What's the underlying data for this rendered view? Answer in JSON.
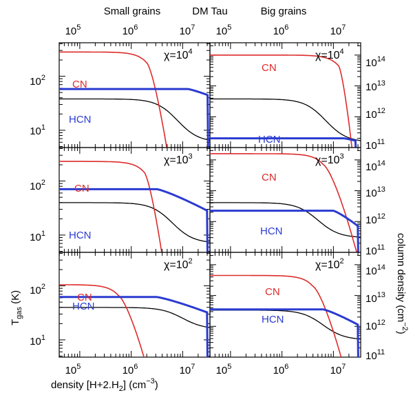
{
  "chart_data": {
    "type": "line",
    "title": "DM Tau",
    "column_titles": [
      "Small grains",
      "Big grains"
    ],
    "xlabel": "density [H+2.H",
    "xlabel_sub": "2",
    "xlabel_tail": "] (cm",
    "xlabel_exp": "−3",
    "xlabel_close": ")",
    "ylabel_left": "T",
    "ylabel_left_sub": "gas",
    "ylabel_left_tail": " (K)",
    "ylabel_right": "column density (cm",
    "ylabel_right_exp": "−2",
    "ylabel_right_close": ")",
    "x_scale": "log",
    "xlim_log10": [
      4.6,
      7.53
    ],
    "x_tick_exponents": [
      5,
      6,
      7
    ],
    "x_tick_labels": [
      "10",
      "10",
      "10"
    ],
    "x_tick_label_exps": [
      "5",
      "6",
      "7"
    ],
    "left_y_scale": "log",
    "left_ylim_log10": [
      0.68,
      2.62
    ],
    "left_y_tick_exponents": [
      1,
      2
    ],
    "left_y_tick_labels": [
      "10",
      "10"
    ],
    "left_y_tick_label_exps": [
      "1",
      "2"
    ],
    "right_y_scale": "log",
    "right_ylim_log10": [
      11,
      14.4
    ],
    "right_y_tick_exponents": [
      11,
      12,
      13,
      14
    ],
    "right_y_tick_labels": [
      "10",
      "10",
      "10",
      "10"
    ],
    "right_y_tick_label_exps": [
      "11",
      "12",
      "13",
      "14"
    ],
    "series_colors": {
      "CN": "#dd2a2a",
      "HCN": "#2a3bd0",
      "Tgas": "#000000"
    },
    "panels": [
      {
        "row": 0,
        "col": 0,
        "chi_label": "χ=10",
        "chi_exp": "4",
        "CN": {
          "label": "CN",
          "y0": 14.1,
          "xm": 6.3,
          "xe": 6.72,
          "k": 2.5
        },
        "HCN": {
          "label": "HCN",
          "y0": 12.9,
          "xm": 7.1,
          "xe": 7.49,
          "k": 0.2,
          "drop_to": 11.0
        },
        "Tgas": {
          "label": "T",
          "y0": 1.58,
          "xm": 6.9,
          "yend": 0.78,
          "k": 2.2
        }
      },
      {
        "row": 0,
        "col": 1,
        "chi_label": "χ=10",
        "chi_exp": "4",
        "CN": {
          "label": "CN",
          "y0": 14.0,
          "xm": 7.1,
          "xe": 7.38,
          "k": 2.5
        },
        "HCN": {
          "label": "HCN",
          "y0": 11.3,
          "xm": 7.2,
          "xe": 7.43,
          "k": 0.08,
          "drop_to": 11.0
        },
        "Tgas": {
          "label": "T",
          "y0": 1.58,
          "xm": 6.85,
          "yend": 0.78,
          "k": 2.2
        }
      },
      {
        "row": 1,
        "col": 0,
        "chi_label": "χ=10",
        "chi_exp": "3",
        "CN": {
          "label": "CN",
          "y0": 13.95,
          "xm": 6.25,
          "xe": 6.62,
          "k": 2.5
        },
        "HCN": {
          "label": "HCN",
          "y0": 13.05,
          "xm": 6.5,
          "xe": 7.48,
          "k": 0.7,
          "drop_to": 11.0
        },
        "Tgas": {
          "label": "T",
          "y0": 1.6,
          "xm": 6.8,
          "yend": 0.85,
          "k": 2.2
        }
      },
      {
        "row": 1,
        "col": 1,
        "chi_label": "χ=10",
        "chi_exp": "3",
        "CN": {
          "label": "CN",
          "y0": 14.2,
          "xm": 6.8,
          "xe": 7.5,
          "k": 2.5
        },
        "HCN": {
          "label": "HCN",
          "y0": 12.35,
          "xm": 7.0,
          "xe": 7.48,
          "k": 0.5,
          "drop_to": 11.0
        },
        "Tgas": {
          "label": "T",
          "y0": 1.6,
          "xm": 6.7,
          "yend": 0.95,
          "k": 2.2
        }
      },
      {
        "row": 2,
        "col": 0,
        "chi_label": "χ=10",
        "chi_exp": "2",
        "CN": {
          "label": "CN",
          "y0": 13.35,
          "xm": 5.75,
          "xe": 6.3,
          "k": 2.5
        },
        "HCN": {
          "label": "HCN",
          "y0": 12.95,
          "xm": 6.5,
          "xe": 7.48,
          "k": 0.5,
          "drop_to": 11.0
        },
        "Tgas": {
          "label": "T",
          "y0": 1.6,
          "xm": 7.0,
          "yend": 1.2,
          "k": 2.2
        }
      },
      {
        "row": 2,
        "col": 1,
        "chi_label": "χ=10",
        "chi_exp": "2",
        "CN": {
          "label": "CN",
          "y0": 13.65,
          "xm": 6.6,
          "xe": 7.2,
          "k": 2.5
        },
        "HCN": {
          "label": "HCN",
          "y0": 12.55,
          "xm": 6.8,
          "xe": 7.48,
          "k": 0.5,
          "drop_to": 11.0
        },
        "Tgas": {
          "label": "T",
          "y0": 1.55,
          "xm": 6.8,
          "yend": 1.0,
          "k": 2.2
        }
      }
    ]
  }
}
